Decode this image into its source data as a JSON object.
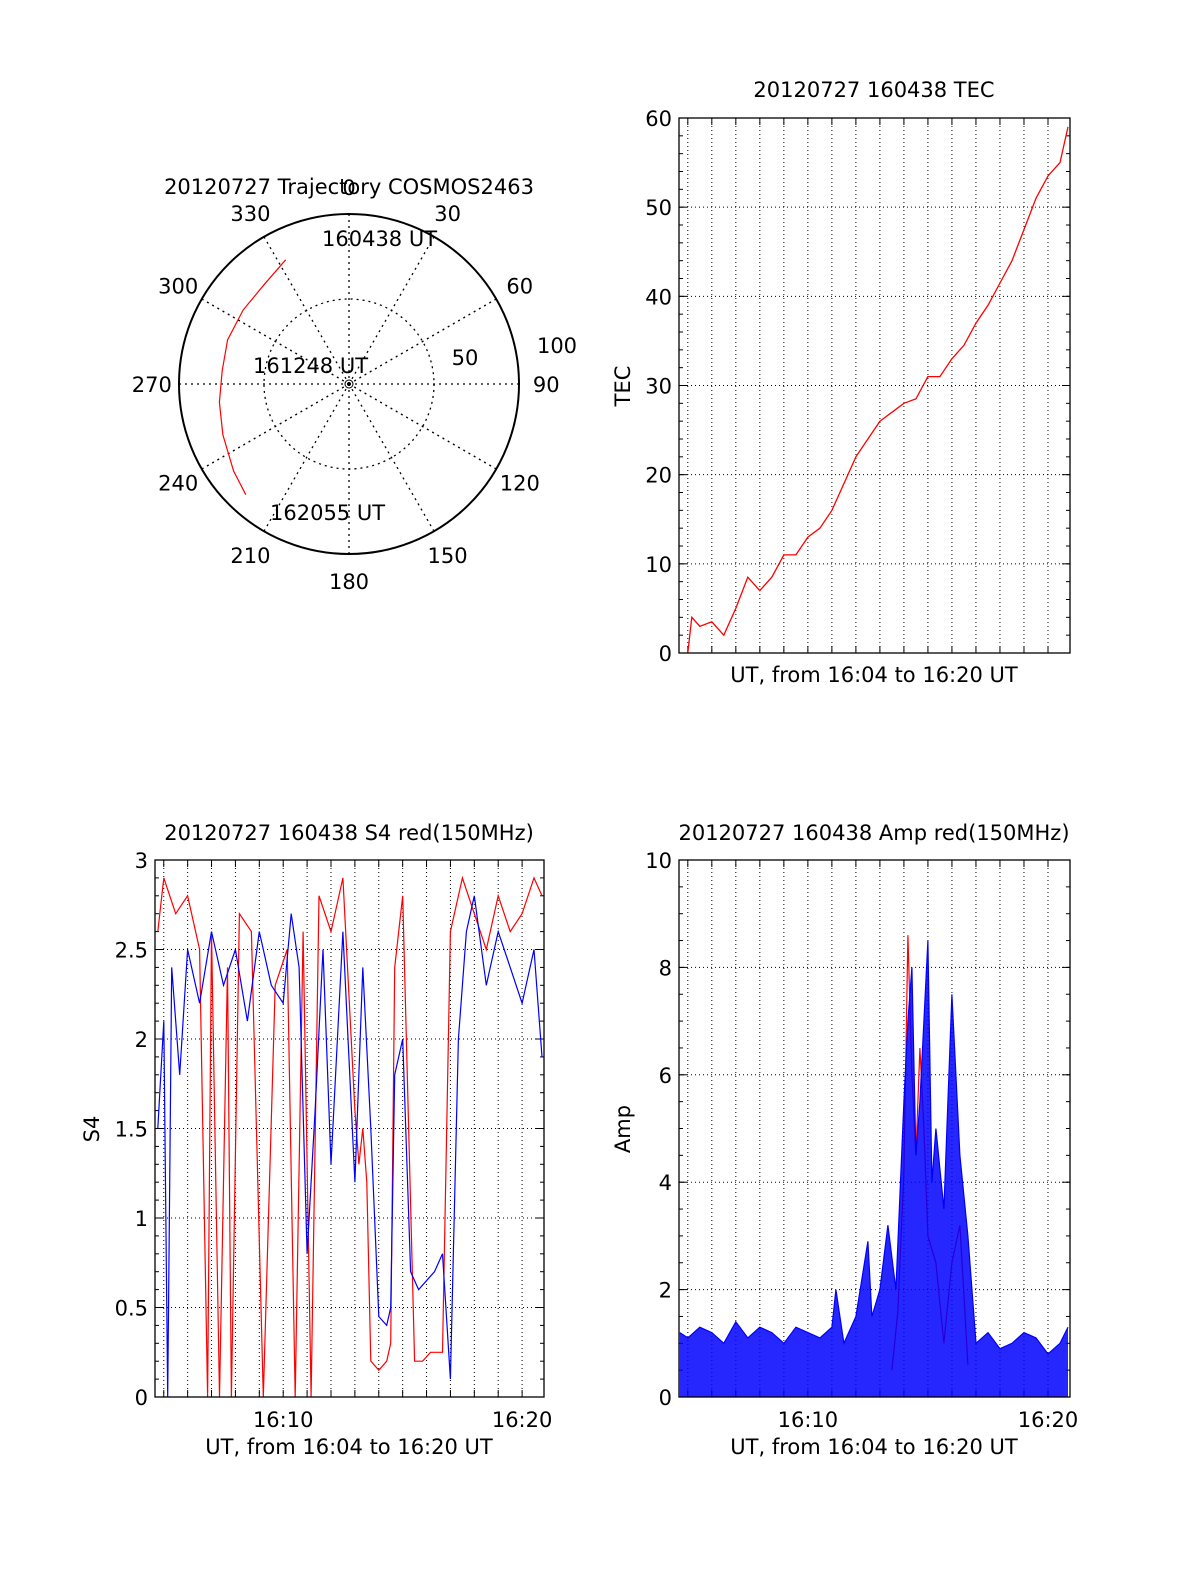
{
  "chart_data": [
    {
      "type": "polar",
      "id": "trajectory",
      "title": "20120727 Trajectory COSMOS2463",
      "azimuth_labels": [
        "0",
        "30",
        "60",
        "90",
        "120",
        "150",
        "180",
        "210",
        "240",
        "270",
        "300",
        "330"
      ],
      "radial_labels": [
        "50",
        "100"
      ],
      "radial_range": [
        0,
        100
      ],
      "series": [
        {
          "color": "#ff0000",
          "points": [
            {
              "az": 333,
              "r": 82
            },
            {
              "az": 320,
              "r": 77
            },
            {
              "az": 305,
              "r": 76
            },
            {
              "az": 290,
              "r": 76
            },
            {
              "az": 276,
              "r": 75
            },
            {
              "az": 262,
              "r": 77
            },
            {
              "az": 248,
              "r": 80
            },
            {
              "az": 233,
              "r": 85
            },
            {
              "az": 223,
              "r": 89
            }
          ]
        }
      ],
      "annotations": [
        {
          "text": "160438 UT",
          "az": 352,
          "r": 86
        },
        {
          "text": "161248 UT",
          "az": 275,
          "r": 47
        },
        {
          "text": "162055 UT",
          "az": 224,
          "r": 83
        }
      ]
    },
    {
      "type": "line",
      "id": "tec",
      "title": "20120727 160438 TEC",
      "xlabel": "UT, from 16:04 to 16:20 UT",
      "ylabel": "TEC",
      "xlim": [
        "16:04:38",
        "16:20:55"
      ],
      "ylim": [
        0,
        60
      ],
      "yticks": [
        "0",
        "10",
        "20",
        "30",
        "40",
        "50",
        "60"
      ],
      "grid": true,
      "series": [
        {
          "color": "#ff0000",
          "x": [
            "16:05:00",
            "16:05:10",
            "16:05:30",
            "16:06:00",
            "16:06:30",
            "16:07:00",
            "16:07:30",
            "16:08:00",
            "16:08:30",
            "16:09:00",
            "16:09:30",
            "16:10:00",
            "16:10:30",
            "16:11:00",
            "16:11:30",
            "16:12:00",
            "16:12:30",
            "16:13:00",
            "16:13:30",
            "16:14:00",
            "16:14:30",
            "16:15:00",
            "16:15:30",
            "16:16:00",
            "16:16:30",
            "16:17:00",
            "16:17:30",
            "16:18:00",
            "16:18:30",
            "16:19:00",
            "16:19:30",
            "16:20:00",
            "16:20:30",
            "16:20:50"
          ],
          "y": [
            0,
            4,
            3,
            3.5,
            2,
            5,
            8.5,
            7,
            8.5,
            11,
            11,
            13,
            14,
            16,
            19,
            22,
            24,
            26,
            27,
            28,
            28.5,
            31,
            31,
            33,
            34.5,
            37,
            39,
            41.5,
            44,
            47.5,
            51,
            53.5,
            55,
            59
          ]
        }
      ]
    },
    {
      "type": "line",
      "id": "s4",
      "title": "20120727 160438 S4 red(150MHz)",
      "xlabel": "UT, from 16:04 to 16:20 UT",
      "ylabel": "S4",
      "xlim": [
        "16:04:38",
        "16:20:55"
      ],
      "ylim": [
        0,
        3
      ],
      "yticks": [
        "0",
        "0.5",
        "1",
        "1.5",
        "2",
        "2.5",
        "3"
      ],
      "xticks": [
        "16:10",
        "16:20"
      ],
      "grid": true,
      "series": [
        {
          "color": "#ff0000",
          "x": [
            "16:04:45",
            "16:05:00",
            "16:05:30",
            "16:06:00",
            "16:06:30",
            "16:06:50",
            "16:07:00",
            "16:07:20",
            "16:07:40",
            "16:07:50",
            "16:08:10",
            "16:08:40",
            "16:09:10",
            "16:09:40",
            "16:10:10",
            "16:10:30",
            "16:10:50",
            "16:11:10",
            "16:11:30",
            "16:12:00",
            "16:12:30",
            "16:13:00",
            "16:13:10",
            "16:13:20",
            "16:13:30",
            "16:13:40",
            "16:14:00",
            "16:14:20",
            "16:14:30",
            "16:14:40",
            "16:15:00",
            "16:15:30",
            "16:15:50",
            "16:16:10",
            "16:16:20",
            "16:16:40",
            "16:17:00",
            "16:17:30",
            "16:18:00",
            "16:18:30",
            "16:19:00",
            "16:19:30",
            "16:20:00",
            "16:20:30",
            "16:20:50"
          ],
          "y": [
            2.6,
            2.9,
            2.7,
            2.8,
            2.5,
            0.0,
            2.6,
            0.0,
            2.4,
            0.0,
            2.7,
            2.6,
            0.0,
            2.3,
            2.5,
            0.0,
            2.6,
            0.0,
            2.8,
            2.6,
            2.9,
            1.6,
            1.3,
            1.5,
            1.2,
            0.2,
            0.15,
            0.2,
            0.3,
            2.4,
            2.8,
            0.2,
            0.2,
            0.25,
            0.25,
            0.25,
            2.6,
            2.9,
            2.7,
            2.5,
            2.8,
            2.6,
            2.7,
            2.9,
            2.8
          ]
        },
        {
          "color": "#0000ff",
          "x": [
            "16:04:45",
            "16:05:00",
            "16:05:10",
            "16:05:20",
            "16:05:40",
            "16:06:00",
            "16:06:30",
            "16:07:00",
            "16:07:30",
            "16:08:00",
            "16:08:30",
            "16:09:00",
            "16:09:30",
            "16:10:00",
            "16:10:20",
            "16:10:40",
            "16:11:00",
            "16:11:20",
            "16:11:40",
            "16:12:00",
            "16:12:30",
            "16:13:00",
            "16:13:20",
            "16:13:40",
            "16:14:00",
            "16:14:20",
            "16:14:30",
            "16:14:40",
            "16:15:00",
            "16:15:20",
            "16:15:40",
            "16:16:00",
            "16:16:20",
            "16:16:40",
            "16:17:00",
            "16:17:20",
            "16:17:40",
            "16:18:00",
            "16:18:30",
            "16:19:00",
            "16:19:30",
            "16:20:00",
            "16:20:30",
            "16:20:50"
          ],
          "y": [
            1.5,
            2.1,
            0.0,
            2.4,
            1.8,
            2.5,
            2.2,
            2.6,
            2.3,
            2.5,
            2.1,
            2.6,
            2.3,
            2.2,
            2.7,
            2.4,
            0.8,
            1.6,
            2.5,
            1.3,
            2.6,
            1.2,
            2.4,
            1.5,
            0.45,
            0.4,
            0.5,
            1.8,
            2.0,
            0.7,
            0.6,
            0.65,
            0.7,
            0.8,
            0.1,
            2.0,
            2.6,
            2.8,
            2.3,
            2.6,
            2.4,
            2.2,
            2.5,
            1.9
          ]
        }
      ]
    },
    {
      "type": "line",
      "id": "amp",
      "title": "20120727 160438 Amp red(150MHz)",
      "xlabel": "UT, from 16:04 to 16:20 UT",
      "ylabel": "Amp",
      "xlim": [
        "16:04:38",
        "16:20:55"
      ],
      "ylim": [
        0,
        10
      ],
      "yticks": [
        "0",
        "2",
        "4",
        "6",
        "8",
        "10"
      ],
      "xticks": [
        "16:10",
        "16:20"
      ],
      "grid": true,
      "series": [
        {
          "color": "#ff0000",
          "x": [
            "16:13:30",
            "16:13:45",
            "16:14:00",
            "16:14:10",
            "16:14:20",
            "16:14:30",
            "16:14:40",
            "16:14:50",
            "16:15:00",
            "16:15:20",
            "16:15:40",
            "16:16:00",
            "16:16:20",
            "16:16:40"
          ],
          "y": [
            0.5,
            1.6,
            4.2,
            8.6,
            6.0,
            4.5,
            6.5,
            5.0,
            3.0,
            2.5,
            1.0,
            2.5,
            3.2,
            0.6
          ]
        },
        {
          "color": "#0000ff",
          "x": [
            "16:04:40",
            "16:05:00",
            "16:05:30",
            "16:06:00",
            "16:06:30",
            "16:07:00",
            "16:07:30",
            "16:08:00",
            "16:08:30",
            "16:09:00",
            "16:09:30",
            "16:10:00",
            "16:10:30",
            "16:11:00",
            "16:11:10",
            "16:11:30",
            "16:12:00",
            "16:12:30",
            "16:12:40",
            "16:13:00",
            "16:13:20",
            "16:13:40",
            "16:14:00",
            "16:14:10",
            "16:14:20",
            "16:14:30",
            "16:14:40",
            "16:15:00",
            "16:15:10",
            "16:15:20",
            "16:15:40",
            "16:16:00",
            "16:16:20",
            "16:16:40",
            "16:17:00",
            "16:17:30",
            "16:18:00",
            "16:18:30",
            "16:19:00",
            "16:19:30",
            "16:20:00",
            "16:20:30",
            "16:20:50"
          ],
          "y": [
            1.2,
            1.1,
            1.3,
            1.2,
            1.0,
            1.4,
            1.1,
            1.3,
            1.2,
            1.0,
            1.3,
            1.2,
            1.1,
            1.3,
            2.0,
            1.0,
            1.5,
            2.9,
            1.5,
            2.0,
            3.2,
            2.0,
            5.5,
            7.0,
            8.0,
            4.5,
            5.5,
            8.5,
            4.0,
            5.0,
            3.5,
            7.5,
            4.5,
            3.0,
            1.0,
            1.2,
            0.9,
            1.0,
            1.2,
            1.1,
            0.8,
            1.0,
            1.3
          ]
        }
      ]
    }
  ]
}
